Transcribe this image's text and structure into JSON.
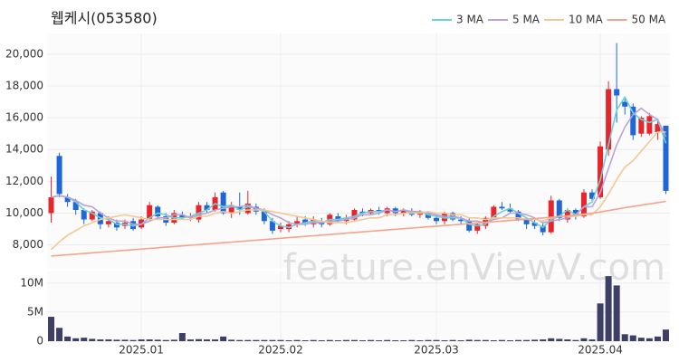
{
  "chart_data": {
    "type": "candlestick",
    "title": "웹케시(053580)",
    "watermark": "feature.enViewV.com",
    "categories": [
      null,
      null,
      null,
      null,
      null,
      null,
      null,
      null,
      null,
      null,
      null,
      "2025.01",
      null,
      null,
      null,
      null,
      null,
      null,
      null,
      null,
      null,
      null,
      null,
      null,
      null,
      null,
      null,
      null,
      "2025.02",
      null,
      null,
      null,
      null,
      null,
      null,
      null,
      null,
      null,
      null,
      null,
      null,
      null,
      null,
      null,
      null,
      null,
      null,
      "2025.03",
      null,
      null,
      null,
      null,
      null,
      null,
      null,
      null,
      null,
      null,
      null,
      null,
      null,
      null,
      null,
      null,
      null,
      null,
      null,
      "2025.04",
      null,
      null,
      null,
      null,
      null,
      null,
      null,
      null
    ],
    "open": [
      10000,
      13600,
      11000,
      10700,
      10200,
      9600,
      10000,
      9300,
      9400,
      9200,
      9500,
      9100,
      9600,
      10400,
      9800,
      9400,
      9900,
      9700,
      9600,
      10500,
      10200,
      11300,
      10000,
      10400,
      10000,
      10400,
      10100,
      9500,
      9000,
      9000,
      9300,
      9600,
      9300,
      9400,
      9300,
      9800,
      9500,
      9600,
      10100,
      10000,
      10200,
      10000,
      10300,
      10000,
      10100,
      9900,
      10000,
      9700,
      9500,
      10000,
      9600,
      9500,
      8900,
      9200,
      9700,
      10400,
      10300,
      10100,
      9600,
      9400,
      9200,
      8800,
      10800,
      9600,
      10200,
      9800,
      11300,
      11000,
      14000,
      17800,
      17000,
      16700,
      15000,
      15000,
      15100,
      15500
    ],
    "high": [
      12300,
      13800,
      11200,
      10900,
      10300,
      10200,
      10100,
      9800,
      9600,
      9600,
      9700,
      9800,
      10700,
      10500,
      10000,
      10200,
      10100,
      10000,
      10700,
      10700,
      11300,
      11400,
      10700,
      11300,
      11400,
      10600,
      10300,
      9700,
      9400,
      9500,
      9800,
      9800,
      9800,
      9700,
      10000,
      10000,
      9900,
      10300,
      10300,
      10300,
      10400,
      10400,
      10400,
      10300,
      10300,
      10200,
      10100,
      9900,
      10100,
      10100,
      9800,
      9700,
      9400,
      9800,
      10500,
      10700,
      10600,
      10200,
      9700,
      9600,
      9400,
      11100,
      10900,
      10300,
      10300,
      11500,
      11500,
      14500,
      18300,
      20700,
      17200,
      16900,
      16100,
      16300,
      15800,
      15500
    ],
    "low": [
      9400,
      11000,
      10400,
      9900,
      9300,
      9500,
      9000,
      9100,
      8900,
      9000,
      8900,
      9000,
      9500,
      9600,
      9200,
      9300,
      9600,
      9500,
      9400,
      10000,
      10100,
      9900,
      9700,
      9900,
      9900,
      9900,
      9300,
      8700,
      8800,
      8800,
      9100,
      9200,
      9100,
      9100,
      9200,
      9400,
      9300,
      9500,
      9800,
      9900,
      9900,
      9800,
      9800,
      9800,
      9800,
      9700,
      9600,
      9300,
      9300,
      9500,
      9300,
      8800,
      8700,
      9000,
      9600,
      10200,
      10000,
      9500,
      9000,
      9000,
      8600,
      8700,
      9500,
      9400,
      9600,
      9700,
      10700,
      10900,
      13600,
      15700,
      16200,
      14600,
      14800,
      14900,
      14600,
      11200
    ],
    "close": [
      11000,
      11200,
      10700,
      10200,
      9600,
      10100,
      9300,
      9500,
      9100,
      9400,
      9000,
      9600,
      10500,
      9800,
      9400,
      10000,
      9700,
      9800,
      10500,
      10200,
      11000,
      10000,
      10500,
      10200,
      10600,
      10100,
      9500,
      8900,
      9200,
      9300,
      9500,
      9400,
      9600,
      9300,
      9900,
      9500,
      9700,
      10200,
      10000,
      10200,
      10100,
      10300,
      10000,
      10200,
      9900,
      10100,
      9700,
      9500,
      10000,
      9600,
      9500,
      8900,
      9300,
      9700,
      10400,
      10300,
      10100,
      9600,
      9300,
      9200,
      8800,
      10800,
      9700,
      10200,
      9800,
      11300,
      10900,
      14200,
      17800,
      17400,
      16700,
      14900,
      16000,
      16100,
      15600,
      11400
    ],
    "up_color": "#e8242c",
    "down_color": "#1f66d8",
    "ylim": [
      6500,
      21300
    ],
    "yticks": [
      {
        "value": 8000,
        "label": "8,000"
      },
      {
        "value": 10000,
        "label": "10,000"
      },
      {
        "value": 12000,
        "label": "12,000"
      },
      {
        "value": 14000,
        "label": "14,000"
      },
      {
        "value": 16000,
        "label": "16,000"
      },
      {
        "value": 18000,
        "label": "18,000"
      },
      {
        "value": 20000,
        "label": "20,000"
      }
    ],
    "grid": true,
    "legend": "top-right",
    "series": [
      {
        "name": "3 MA",
        "color": "#6fd0d4",
        "values": [
          11000,
          11100,
          11000,
          10700,
          10200,
          10000,
          9700,
          9600,
          9300,
          9300,
          9200,
          9300,
          9700,
          10000,
          9900,
          9700,
          9700,
          9800,
          10000,
          10200,
          10600,
          10400,
          10500,
          10200,
          10400,
          10300,
          10100,
          9500,
          9200,
          9100,
          9300,
          9400,
          9500,
          9400,
          9600,
          9600,
          9700,
          9800,
          10000,
          10100,
          10100,
          10200,
          10100,
          10200,
          10000,
          10100,
          9900,
          9800,
          9700,
          9700,
          9700,
          9300,
          9200,
          9300,
          9800,
          10100,
          10300,
          10000,
          9700,
          9400,
          9100,
          9600,
          9800,
          10200,
          9900,
          10400,
          10700,
          12100,
          14300,
          16500,
          17300,
          16300,
          15900,
          15700,
          15900,
          14400
        ]
      },
      {
        "name": "5 MA",
        "color": "#b9a2d6",
        "values": [
          11000,
          11100,
          11000,
          10800,
          10500,
          10400,
          10000,
          9700,
          9500,
          9500,
          9300,
          9300,
          9500,
          9700,
          9700,
          9900,
          9900,
          9700,
          9900,
          10000,
          10200,
          10300,
          10400,
          10400,
          10500,
          10300,
          10200,
          9900,
          9700,
          9400,
          9300,
          9300,
          9400,
          9400,
          9500,
          9500,
          9600,
          9700,
          9900,
          9900,
          10000,
          10200,
          10100,
          10200,
          10100,
          10100,
          10000,
          9900,
          9800,
          9800,
          9700,
          9500,
          9500,
          9400,
          9600,
          9700,
          10000,
          10000,
          9900,
          9700,
          9400,
          9500,
          9600,
          9700,
          9900,
          10400,
          10400,
          11300,
          12800,
          14300,
          15400,
          16200,
          16600,
          16200,
          15900,
          14800
        ]
      },
      {
        "name": "10 MA",
        "color": "#f4c894",
        "values": [
          7700,
          8200,
          8600,
          8900,
          9200,
          9400,
          9600,
          9700,
          9800,
          9900,
          9800,
          9700,
          9600,
          9600,
          9600,
          9600,
          9600,
          9600,
          9800,
          9800,
          10000,
          10100,
          10000,
          10100,
          10200,
          10200,
          10200,
          10100,
          10000,
          9900,
          9800,
          9700,
          9600,
          9500,
          9400,
          9400,
          9400,
          9500,
          9600,
          9700,
          9700,
          9900,
          9900,
          10000,
          10000,
          10000,
          10100,
          10000,
          10000,
          9900,
          9900,
          9700,
          9700,
          9600,
          9700,
          9700,
          9700,
          9700,
          9600,
          9600,
          9500,
          9700,
          9800,
          9800,
          9800,
          9900,
          9900,
          10400,
          11200,
          12100,
          12900,
          13300,
          13900,
          14500,
          15100,
          15100
        ]
      },
      {
        "name": "50 MA",
        "color": "#f2a48e",
        "values": [
          7300,
          7340,
          7380,
          7420,
          7460,
          7500,
          7540,
          7580,
          7620,
          7660,
          7700,
          7740,
          7780,
          7820,
          7860,
          7900,
          7940,
          7980,
          8020,
          8060,
          8100,
          8140,
          8180,
          8220,
          8260,
          8300,
          8340,
          8380,
          8420,
          8460,
          8500,
          8540,
          8580,
          8620,
          8660,
          8700,
          8740,
          8780,
          8820,
          8860,
          8900,
          8940,
          8980,
          9020,
          9060,
          9100,
          9140,
          9180,
          9220,
          9260,
          9300,
          9340,
          9380,
          9420,
          9460,
          9500,
          9540,
          9580,
          9620,
          9660,
          9700,
          9740,
          9780,
          9830,
          9880,
          9940,
          10000,
          10070,
          10160,
          10250,
          10340,
          10420,
          10500,
          10580,
          10660,
          10740
        ]
      }
    ],
    "volume": {
      "color": "#3d3f66",
      "ylim": [
        0,
        12000000
      ],
      "yticks": [
        0,
        {
          "value": 5000000,
          "label": "5M"
        },
        {
          "value": 10000000,
          "label": "10M"
        }
      ],
      "values": [
        4200000,
        2300000,
        800000,
        500000,
        600000,
        400000,
        300000,
        300000,
        250000,
        250000,
        200000,
        300000,
        300000,
        250000,
        200000,
        250000,
        1400000,
        300000,
        350000,
        300000,
        300000,
        800000,
        250000,
        200000,
        200000,
        200000,
        200000,
        200000,
        200000,
        150000,
        200000,
        150000,
        200000,
        150000,
        200000,
        150000,
        200000,
        200000,
        150000,
        200000,
        150000,
        200000,
        150000,
        150000,
        200000,
        150000,
        200000,
        200000,
        150000,
        200000,
        150000,
        250000,
        200000,
        200000,
        150000,
        200000,
        150000,
        200000,
        200000,
        250000,
        300000,
        500000,
        400000,
        300000,
        200000,
        500000,
        300000,
        6500000,
        11200000,
        9600000,
        1200000,
        1000000,
        600000,
        500000,
        800000,
        2000000
      ]
    }
  }
}
